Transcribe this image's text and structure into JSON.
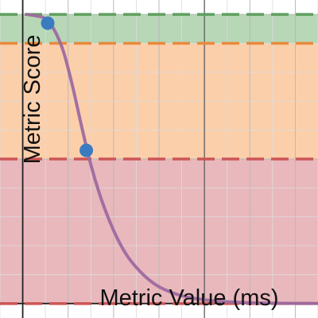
{
  "chart_data": {
    "type": "line",
    "title": "",
    "xlabel": "Metric Value (ms)",
    "ylabel": "Metric Score",
    "xlim": [
      -0.5,
      6.5
    ],
    "ylim": [
      -0.05,
      1.05
    ],
    "grid": true,
    "legend": "none",
    "bands": [
      {
        "name": "",
        "y0": 0.0,
        "y1": 0.5,
        "color": "#e8b4b8",
        "line_color": "#cc5555"
      },
      {
        "name": "",
        "y0": 0.5,
        "y1": 0.9,
        "color": "#fccca6",
        "line_color": "#e88a3c"
      },
      {
        "name": "",
        "y0": 0.9,
        "y1": 1.0,
        "color": "#b3d5b3",
        "line_color": "#5fa05f"
      }
    ],
    "curve": {
      "color": "#9e6aa0",
      "x": [
        0.1,
        0.3,
        0.5,
        0.7,
        0.9,
        1.1,
        1.3,
        1.5,
        1.7,
        1.9,
        2.1,
        2.3,
        2.5,
        2.7,
        2.9,
        3.1,
        3.3,
        3.5,
        3.7,
        3.9,
        4.1,
        4.3,
        4.5,
        4.7,
        4.9,
        5.1,
        5.3,
        5.5,
        5.7,
        5.9,
        6.1,
        6.3,
        6.5
      ],
      "y": [
        1.0,
        0.995,
        0.985,
        0.945,
        0.87,
        0.75,
        0.61,
        0.48,
        0.375,
        0.29,
        0.22,
        0.165,
        0.125,
        0.093,
        0.068,
        0.05,
        0.037,
        0.027,
        0.02,
        0.015,
        0.011,
        0.008,
        0.006,
        0.0045,
        0.0033,
        0.0024,
        0.0018,
        0.0013,
        0.001,
        0.0007,
        0.0005,
        0.0004,
        0.0003
      ]
    },
    "points": [
      {
        "x": 0.55,
        "y": 0.97
      },
      {
        "x": 1.4,
        "y": 0.53
      }
    ],
    "point_color": "#3b7bc0"
  }
}
